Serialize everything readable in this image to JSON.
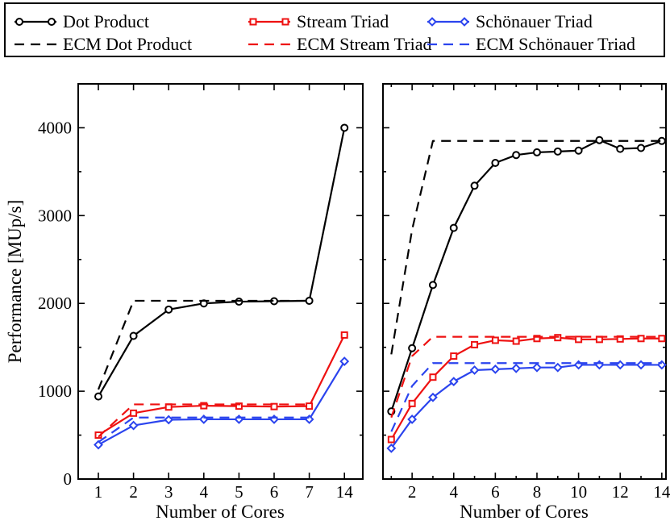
{
  "chart_data": [
    {
      "type": "line",
      "panel": "left",
      "xlabel": "Number of Cores",
      "ylabel": "Performance [MUp/s]",
      "x_tick_labels": [
        "1",
        "2",
        "3",
        "4",
        "5",
        "6",
        "7",
        "14"
      ],
      "ylim": [
        0,
        4500
      ],
      "y_ticks": [
        0,
        1000,
        2000,
        3000,
        4000
      ],
      "series": [
        {
          "name": "Dot Product",
          "style": "solid",
          "marker": "circle",
          "color": "#000000",
          "x": [
            "1",
            "2",
            "3",
            "4",
            "5",
            "6",
            "7",
            "14"
          ],
          "values": [
            940,
            1630,
            1930,
            2000,
            2020,
            2025,
            2030,
            4000
          ]
        },
        {
          "name": "ECM Dot Product",
          "style": "dashed",
          "color": "#000000",
          "x": [
            "1",
            "2",
            "3",
            "4",
            "5",
            "6",
            "7"
          ],
          "values": [
            1020,
            2030,
            2030,
            2030,
            2030,
            2030,
            2030
          ]
        },
        {
          "name": "Stream Triad",
          "style": "solid",
          "marker": "square",
          "color": "#ee1111",
          "x": [
            "1",
            "2",
            "3",
            "4",
            "5",
            "6",
            "7",
            "14"
          ],
          "values": [
            500,
            750,
            820,
            835,
            830,
            825,
            830,
            1640
          ]
        },
        {
          "name": "ECM Stream Triad",
          "style": "dashed",
          "color": "#ee1111",
          "x": [
            "1",
            "2",
            "3",
            "4",
            "5",
            "6",
            "7"
          ],
          "values": [
            480,
            850,
            850,
            850,
            850,
            850,
            850
          ]
        },
        {
          "name": "Schönauer Triad",
          "style": "solid",
          "marker": "diamond",
          "color": "#2b44ee",
          "x": [
            "1",
            "2",
            "3",
            "4",
            "5",
            "6",
            "7",
            "14"
          ],
          "values": [
            390,
            610,
            675,
            680,
            680,
            680,
            680,
            1340
          ]
        },
        {
          "name": "ECM Schönauer Triad",
          "style": "dashed",
          "color": "#2b44ee",
          "x": [
            "1",
            "2",
            "3",
            "4",
            "5",
            "6",
            "7"
          ],
          "values": [
            420,
            700,
            700,
            700,
            700,
            700,
            700
          ]
        }
      ]
    },
    {
      "type": "line",
      "panel": "right",
      "xlabel": "Number of Cores",
      "ylabel": "",
      "xlim": [
        0.6,
        14.2
      ],
      "x_tick_labels": [
        "2",
        "4",
        "6",
        "8",
        "10",
        "12",
        "14"
      ],
      "ylim": [
        0,
        4500
      ],
      "series": [
        {
          "name": "Dot Product",
          "style": "solid",
          "marker": "circle",
          "color": "#000000",
          "x": [
            1,
            2,
            3,
            4,
            5,
            6,
            7,
            8,
            9,
            10,
            11,
            12,
            13,
            14
          ],
          "values": [
            770,
            1490,
            2210,
            2860,
            3340,
            3600,
            3690,
            3720,
            3730,
            3740,
            3860,
            3760,
            3770,
            3850
          ]
        },
        {
          "name": "ECM Dot Product",
          "style": "dashed",
          "color": "#000000",
          "x": [
            1,
            2,
            3,
            14
          ],
          "values": [
            1420,
            2840,
            3850,
            3850
          ]
        },
        {
          "name": "Stream Triad",
          "style": "solid",
          "marker": "square",
          "color": "#ee1111",
          "x": [
            1,
            2,
            3,
            4,
            5,
            6,
            7,
            8,
            9,
            10,
            11,
            12,
            13,
            14
          ],
          "values": [
            450,
            860,
            1160,
            1400,
            1530,
            1580,
            1570,
            1600,
            1610,
            1590,
            1590,
            1595,
            1600,
            1600
          ]
        },
        {
          "name": "ECM Stream Triad",
          "style": "dashed",
          "color": "#ee1111",
          "x": [
            1,
            2,
            3,
            14
          ],
          "values": [
            700,
            1400,
            1620,
            1620
          ]
        },
        {
          "name": "Schönauer Triad",
          "style": "solid",
          "marker": "diamond",
          "color": "#2b44ee",
          "x": [
            1,
            2,
            3,
            4,
            5,
            6,
            7,
            8,
            9,
            10,
            11,
            12,
            13,
            14
          ],
          "values": [
            350,
            680,
            930,
            1110,
            1240,
            1250,
            1260,
            1270,
            1270,
            1300,
            1300,
            1300,
            1300,
            1300
          ]
        },
        {
          "name": "ECM Schönauer Triad",
          "style": "dashed",
          "color": "#2b44ee",
          "x": [
            1,
            2,
            3,
            14
          ],
          "values": [
            540,
            1060,
            1320,
            1320
          ]
        }
      ]
    }
  ],
  "legend": {
    "location": "top",
    "entries": [
      {
        "label": "Dot Product",
        "style": "solid",
        "marker": "circle",
        "color": "#000000"
      },
      {
        "label": "Stream Triad",
        "style": "solid",
        "marker": "square",
        "color": "#ee1111"
      },
      {
        "label": "Schönauer Triad",
        "style": "solid",
        "marker": "diamond",
        "color": "#2b44ee"
      },
      {
        "label": "ECM Dot Product",
        "style": "dashed",
        "marker": "",
        "color": "#000000"
      },
      {
        "label": "ECM Stream Triad",
        "style": "dashed",
        "marker": "",
        "color": "#ee1111"
      },
      {
        "label": "ECM Schönauer Triad",
        "style": "dashed",
        "marker": "",
        "color": "#2b44ee"
      }
    ]
  }
}
